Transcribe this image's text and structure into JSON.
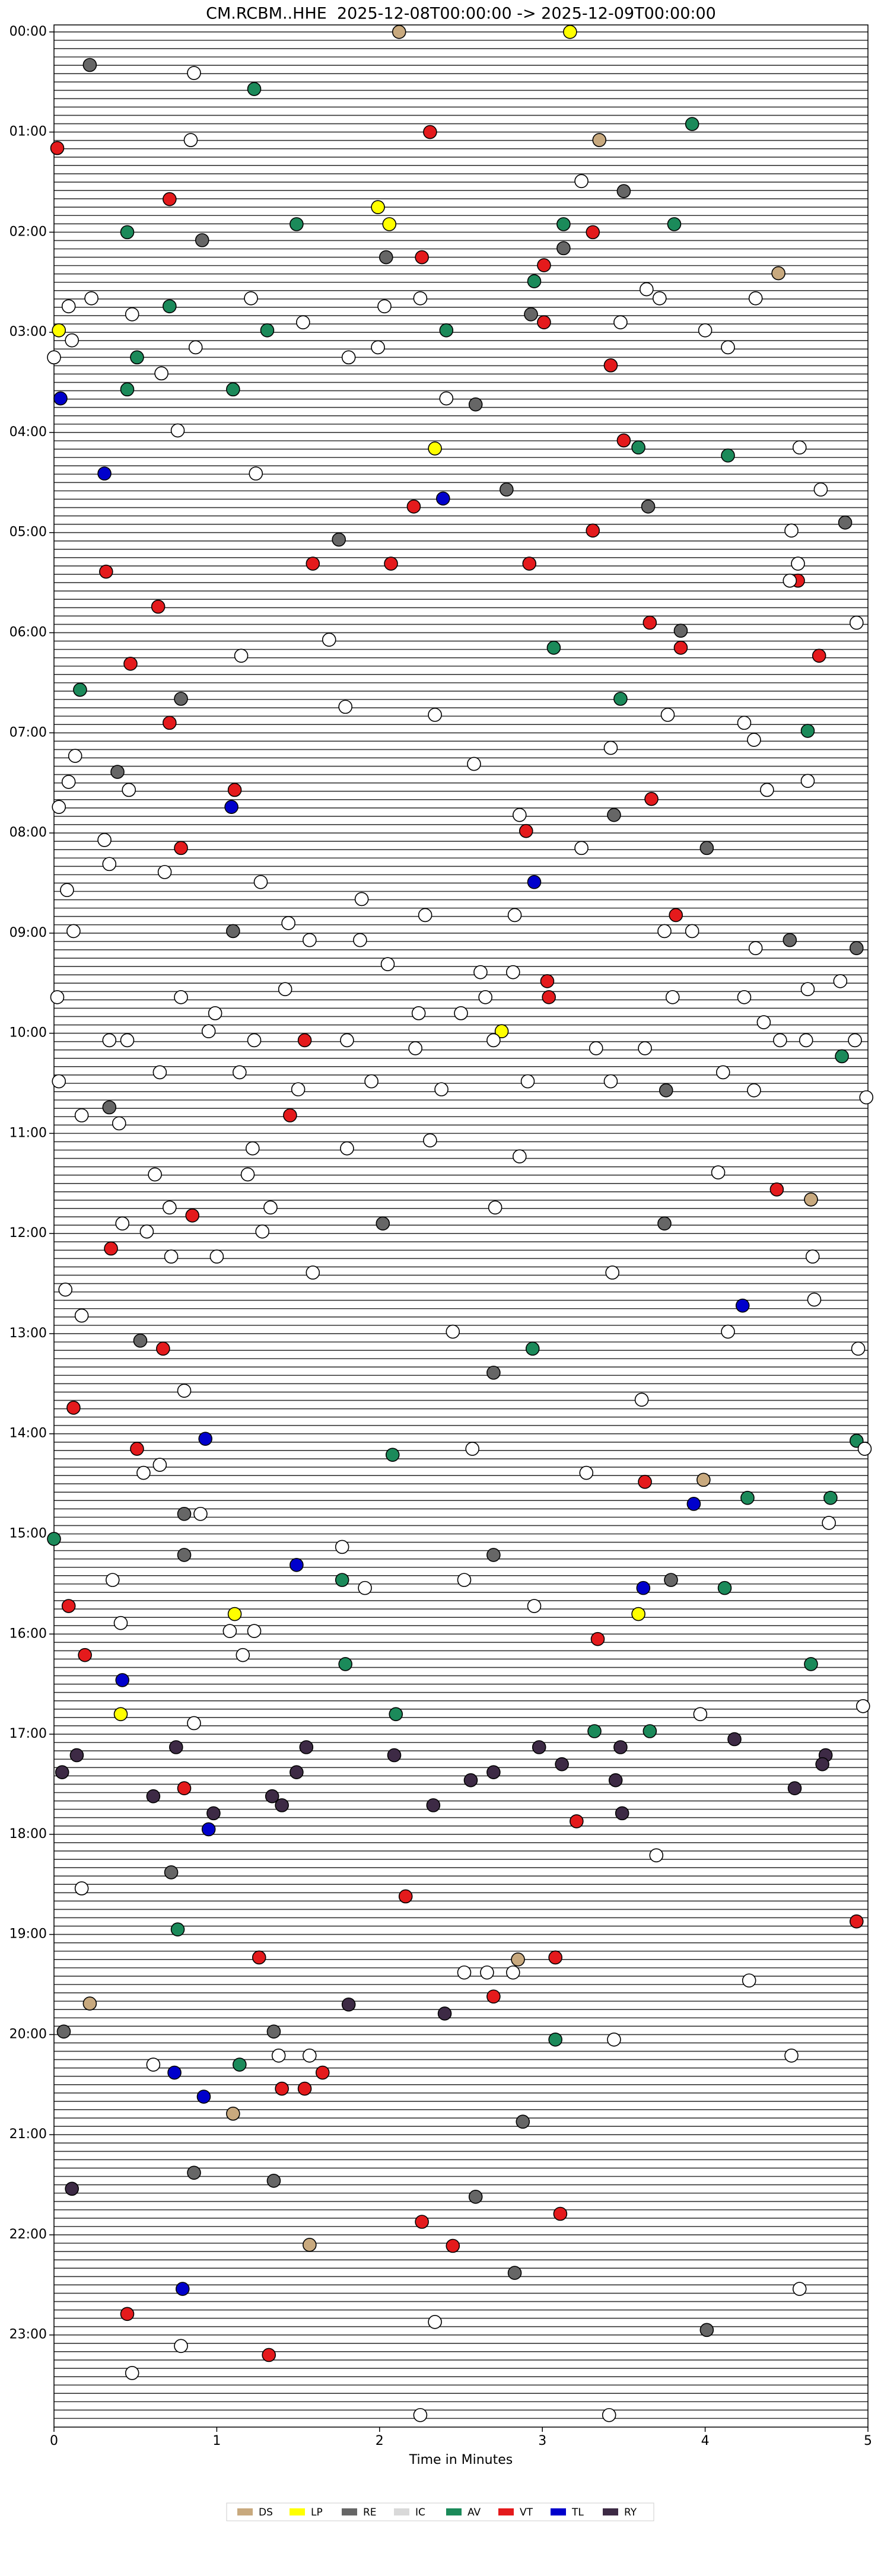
{
  "chart_data": {
    "type": "scatter",
    "title": "CM.RCBM..HHE  2025-12-08T00:00:00 -> 2025-12-09T00:00:00",
    "xlabel": "Time in Minutes",
    "xlim": [
      0,
      5
    ],
    "xticks": [
      0,
      1,
      2,
      3,
      4,
      5
    ],
    "ylim": [
      -0.07,
      23.92
    ],
    "y_inverted": true,
    "yticks": [
      {
        "value": 0,
        "label": "00:00"
      },
      {
        "value": 1,
        "label": "01:00"
      },
      {
        "value": 2,
        "label": "02:00"
      },
      {
        "value": 3,
        "label": "03:00"
      },
      {
        "value": 4,
        "label": "04:00"
      },
      {
        "value": 5,
        "label": "05:00"
      },
      {
        "value": 6,
        "label": "06:00"
      },
      {
        "value": 7,
        "label": "07:00"
      },
      {
        "value": 8,
        "label": "08:00"
      },
      {
        "value": 9,
        "label": "09:00"
      },
      {
        "value": 10,
        "label": "10:00"
      },
      {
        "value": 11,
        "label": "11:00"
      },
      {
        "value": 12,
        "label": "12:00"
      },
      {
        "value": 13,
        "label": "13:00"
      },
      {
        "value": 14,
        "label": "14:00"
      },
      {
        "value": 15,
        "label": "15:00"
      },
      {
        "value": 16,
        "label": "16:00"
      },
      {
        "value": 17,
        "label": "17:00"
      },
      {
        "value": 18,
        "label": "18:00"
      },
      {
        "value": 19,
        "label": "19:00"
      },
      {
        "value": 20,
        "label": "20:00"
      },
      {
        "value": 21,
        "label": "21:00"
      },
      {
        "value": 22,
        "label": "22:00"
      },
      {
        "value": 23,
        "label": "23:00"
      }
    ],
    "series": [
      {
        "name": "DS",
        "color": "#c8a97e",
        "x": [
          2.12,
          3.35,
          4.45,
          3.99,
          4.65,
          2.85,
          0.22,
          1.1,
          1.57
        ],
        "values": [
          0,
          1.08,
          2.41,
          14.46,
          11.66,
          19.25,
          19.69,
          20.79,
          22.1
        ]
      },
      {
        "name": "LP",
        "color": "#ffff00",
        "x": [
          3.17,
          1.99,
          2.06,
          0.03,
          2.34,
          2.75,
          1.11,
          3.59,
          0.41
        ],
        "values": [
          0,
          1.75,
          1.92,
          2.98,
          4.16,
          9.98,
          15.8,
          15.8,
          16.8
        ]
      },
      {
        "name": "RE",
        "color": "#666666",
        "x": [
          0.22,
          3.5,
          0.91,
          2.04,
          3.13,
          2.59,
          2.93,
          2.78,
          3.65,
          1.75,
          4.86,
          3.85,
          0.78,
          0.39,
          3.44,
          4.01,
          1.1,
          4.52,
          4.93,
          0.34,
          3.76,
          0.53,
          2.7,
          3.75,
          2.02,
          0.8,
          0.8,
          2.7,
          3.79,
          0.72,
          1.35,
          0.06,
          2.88,
          2.59,
          4.01,
          2.83,
          0.86,
          1.35
        ],
        "values": [
          0.33,
          1.59,
          2.08,
          2.25,
          2.16,
          3.72,
          2.82,
          4.57,
          4.74,
          5.07,
          4.9,
          5.98,
          6.66,
          7.39,
          7.82,
          8.15,
          8.98,
          9.07,
          9.15,
          10.74,
          10.57,
          13.07,
          13.39,
          11.9,
          11.9,
          14.8,
          15.21,
          15.21,
          15.46,
          18.38,
          19.97,
          19.97,
          20.87,
          21.62,
          22.95,
          22.38,
          21.38,
          21.46
        ]
      },
      {
        "name": "IC",
        "color": "#d9d9d9",
        "x": [],
        "values": []
      },
      {
        "name": "AV",
        "color": "#1b8a5a",
        "x": [
          1.23,
          3.92,
          0.45,
          1.49,
          3.13,
          3.81,
          2.95,
          0.71,
          1.31,
          2.41,
          0.51,
          0.45,
          1.1,
          3.59,
          4.14,
          3.07,
          3.48,
          0.16,
          4.63,
          4.84,
          2.94,
          2.08,
          4.93,
          4.26,
          4.77,
          0,
          1.77,
          4.12,
          1.79,
          4.65,
          2.1,
          3.32,
          3.66,
          0.76,
          1.14,
          3.08
        ],
        "values": [
          0.57,
          0.92,
          2.0,
          1.92,
          1.92,
          1.92,
          2.49,
          2.74,
          2.98,
          2.98,
          3.25,
          3.57,
          3.57,
          4.15,
          4.23,
          6.15,
          6.66,
          6.57,
          6.98,
          10.23,
          13.15,
          14.21,
          14.07,
          14.64,
          14.64,
          15.05,
          15.46,
          15.54,
          16.3,
          16.3,
          16.8,
          16.97,
          16.97,
          18.95,
          20.3,
          20.05
        ]
      },
      {
        "name": "VT",
        "color": "#e41a1c",
        "x": [
          0.02,
          2.31,
          0.71,
          3.31,
          2.26,
          3.01,
          3.01,
          3.42,
          3.5,
          2.21,
          3.31,
          1.59,
          2.07,
          0.32,
          2.92,
          4.57,
          0.64,
          3.66,
          3.85,
          0.47,
          4.7,
          0.71,
          1.11,
          3.67,
          0.78,
          2.9,
          3.82,
          3.03,
          3.04,
          1.54,
          1.45,
          4.44,
          0.85,
          0.35,
          0.12,
          0.51,
          3.63,
          0.67,
          0.09,
          3.34,
          0.19,
          2.16,
          4.93,
          1.26,
          3.08,
          2.7,
          1.65,
          1.4,
          1.54,
          2.26,
          3.11,
          2.45,
          0.45,
          1.32,
          0.8,
          3.21
        ],
        "values": [
          1.16,
          1.0,
          1.67,
          2.0,
          2.25,
          2.33,
          2.9,
          3.33,
          4.08,
          4.74,
          4.98,
          5.31,
          5.31,
          5.39,
          5.31,
          5.48,
          5.74,
          5.9,
          6.15,
          6.31,
          6.23,
          6.9,
          7.57,
          7.66,
          8.15,
          7.98,
          8.82,
          9.48,
          9.64,
          10.07,
          10.82,
          11.56,
          11.82,
          12.15,
          13.74,
          14.15,
          14.48,
          13.15,
          15.72,
          16.05,
          16.21,
          18.62,
          18.87,
          19.23,
          19.23,
          19.62,
          20.38,
          20.54,
          20.54,
          21.87,
          21.79,
          22.11,
          22.79,
          23.2,
          17.54,
          17.87
        ]
      },
      {
        "name": "TL",
        "color": "#0000cc",
        "x": [
          0.04,
          0.31,
          2.39,
          1.09,
          2.95,
          1.49,
          3.62,
          0.42,
          0.93,
          4.23,
          3.93,
          0.95,
          0.74,
          0.92,
          0.79
        ],
        "values": [
          3.66,
          4.41,
          4.66,
          7.74,
          8.49,
          15.31,
          15.54,
          16.46,
          14.05,
          12.72,
          14.7,
          17.95,
          20.38,
          20.62,
          22.54
        ]
      },
      {
        "name": "RY",
        "color": "#3d2a45",
        "x": [
          0.75,
          1.55,
          2.98,
          4.18,
          0.14,
          2.09,
          3.48,
          4.74,
          0.05,
          1.49,
          2.56,
          2.7,
          3.12,
          4.72,
          0.61,
          1.34,
          3.45,
          4.55,
          0.98,
          1.4,
          2.33,
          3.49,
          1.81,
          2.4,
          0.11
        ],
        "values": [
          17.13,
          17.13,
          17.13,
          17.05,
          17.21,
          17.21,
          17.13,
          17.21,
          17.38,
          17.38,
          17.46,
          17.38,
          17.3,
          17.3,
          17.62,
          17.62,
          17.46,
          17.54,
          17.79,
          17.71,
          17.71,
          17.79,
          19.7,
          19.79,
          21.54
        ]
      },
      {
        "color": "#ffffff",
        "x": [
          0.86,
          0.84,
          3.24,
          0.48,
          0.23,
          0.09,
          1.21,
          2.03,
          2.25,
          3.48,
          3.64,
          3.72,
          4.31,
          4.0,
          4.14,
          0.11,
          0.87,
          0,
          0.66,
          1.53,
          1.81,
          1.99,
          2.41,
          0.76,
          4.58,
          4.71,
          1.24,
          4.53,
          4.57,
          4.52,
          4.93,
          1.69,
          1.15,
          1.79,
          2.34,
          3.77,
          4.24,
          4.3,
          3.42,
          0.13,
          2.58,
          0.09,
          0.46,
          4.38,
          4.63,
          0.03,
          2.86,
          3.24,
          0.31,
          0.34,
          0.68,
          1.27,
          1.89,
          0.08,
          2.28,
          2.83,
          1.44,
          1.57,
          1.88,
          0.12,
          3.75,
          3.92,
          4.31,
          2.05,
          0.02,
          0.78,
          0.99,
          0.95,
          1.42,
          2.24,
          2.5,
          2.65,
          2.82,
          2.62,
          3.8,
          4.24,
          4.63,
          4.83,
          0.34,
          0.45,
          1.23,
          1.8,
          2.22,
          2.7,
          3.33,
          3.63,
          4.36,
          4.46,
          4.62,
          4.92,
          0.03,
          0.65,
          1.14,
          1.5,
          1.95,
          2.38,
          2.91,
          3.42,
          4.11,
          4.3,
          4.99,
          0.17,
          0.4,
          1.22,
          1.8,
          2.31,
          2.86,
          0.62,
          1.19,
          4.08,
          0.71,
          1.33,
          2.71,
          0.42,
          0.57,
          1.28,
          0.72,
          1.0,
          1.59,
          3.43,
          4.66,
          0.07,
          4.67,
          0.17,
          2.45,
          4.14,
          4.94,
          0.8,
          3.61,
          4.98,
          0.65,
          2.57,
          3.27,
          0.55,
          4.76,
          0.9,
          1.77,
          0.36,
          1.91,
          2.52,
          2.95,
          0.41,
          1.08,
          1.23,
          1.16,
          4.97,
          0.86,
          3.97,
          3.7,
          0.17,
          4.27,
          2.52,
          2.66,
          2.82,
          3.44,
          4.53,
          0.61,
          1.38,
          1.57,
          4.58,
          2.34,
          0.78,
          0.48,
          2.25,
          3.41
        ],
        "values": [
          0.41,
          1.08,
          1.49,
          2.82,
          2.66,
          2.74,
          2.66,
          2.74,
          2.66,
          2.9,
          2.57,
          2.66,
          2.66,
          2.98,
          3.15,
          3.08,
          3.15,
          3.25,
          3.41,
          2.9,
          3.25,
          3.15,
          3.66,
          3.98,
          4.15,
          4.57,
          4.41,
          4.98,
          5.31,
          5.48,
          5.9,
          6.07,
          6.23,
          6.74,
          6.82,
          6.82,
          6.9,
          7.07,
          7.15,
          7.23,
          7.31,
          7.49,
          7.57,
          7.57,
          7.48,
          7.74,
          7.82,
          8.15,
          8.07,
          8.31,
          8.39,
          8.49,
          8.66,
          8.57,
          8.82,
          8.82,
          8.9,
          9.07,
          9.07,
          8.98,
          8.98,
          8.98,
          9.15,
          9.31,
          9.64,
          9.64,
          9.8,
          9.98,
          9.56,
          9.8,
          9.8,
          9.64,
          9.39,
          9.39,
          9.64,
          9.64,
          9.56,
          9.48,
          10.07,
          10.07,
          10.07,
          10.07,
          10.15,
          10.07,
          10.15,
          10.15,
          9.89,
          10.07,
          10.07,
          10.07,
          10.48,
          10.39,
          10.39,
          10.56,
          10.48,
          10.56,
          10.48,
          10.48,
          10.39,
          10.57,
          10.64,
          10.82,
          10.9,
          11.15,
          11.15,
          11.07,
          11.23,
          11.41,
          11.41,
          11.39,
          11.74,
          11.74,
          11.74,
          11.9,
          11.98,
          11.98,
          12.23,
          12.23,
          12.39,
          12.39,
          12.23,
          12.56,
          12.66,
          12.82,
          12.98,
          12.98,
          13.15,
          13.57,
          13.66,
          14.15,
          14.31,
          14.15,
          14.39,
          14.39,
          14.89,
          14.8,
          15.13,
          15.46,
          15.54,
          15.46,
          15.72,
          15.89,
          15.97,
          15.97,
          16.21,
          16.72,
          16.89,
          16.8,
          18.21,
          18.54,
          19.46,
          19.38,
          19.38,
          19.38,
          20.05,
          20.21,
          20.3,
          20.21,
          20.21,
          22.54,
          22.87,
          23.11,
          23.38,
          23.8,
          23.8
        ]
      }
    ]
  }
}
